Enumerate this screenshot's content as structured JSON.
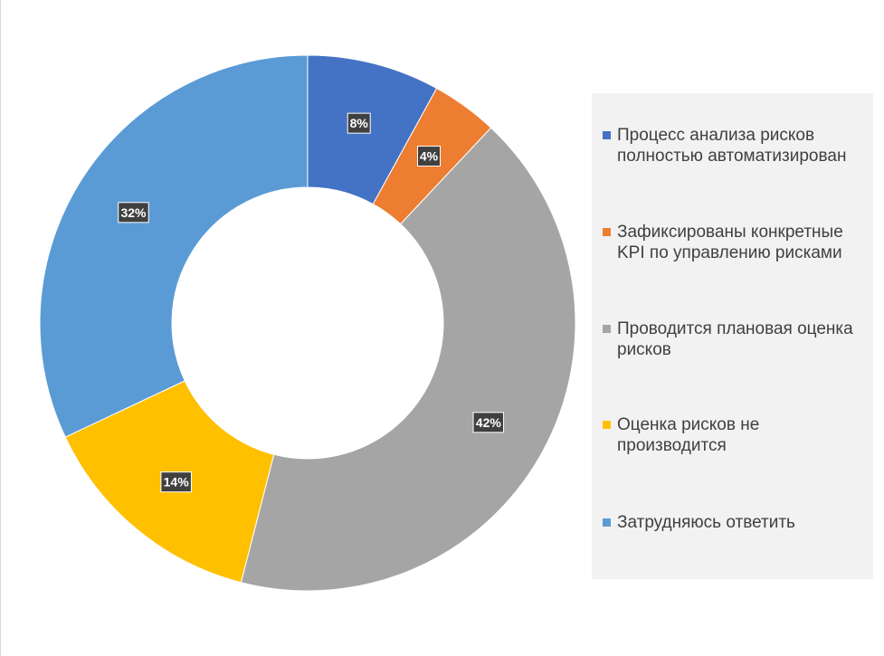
{
  "chart_data": {
    "type": "pie",
    "variant": "donut",
    "legend_position": "right",
    "series": [
      {
        "label": "Процесс анализа рисков полностью автоматизирован",
        "value": 8,
        "value_label": "8%",
        "color": "#4472c4"
      },
      {
        "label": "Зафиксированы конкретные KPI по управлению рисками",
        "value": 4,
        "value_label": "4%",
        "color": "#ed7d31"
      },
      {
        "label": "Проводится плановая оценка рисков",
        "value": 42,
        "value_label": "42%",
        "color": "#a5a5a5"
      },
      {
        "label": "Оценка рисков не производится",
        "value": 14,
        "value_label": "14%",
        "color": "#ffc000"
      },
      {
        "label": "Затрудняюсь ответить",
        "value": 32,
        "value_label": "32%",
        "color": "#5b9bd5"
      }
    ]
  }
}
